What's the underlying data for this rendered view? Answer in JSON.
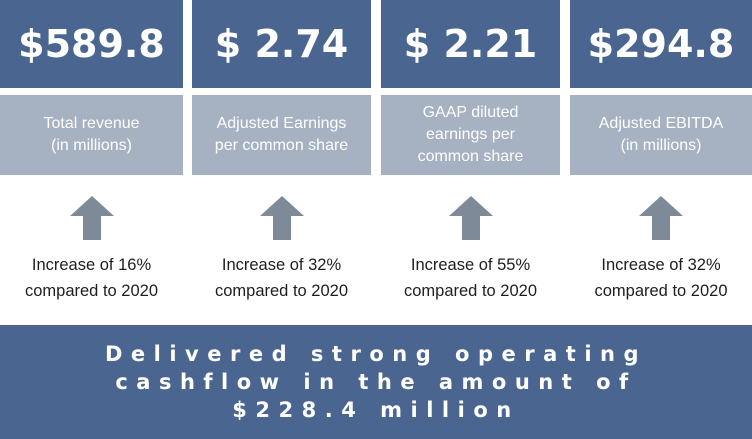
{
  "metrics": [
    {
      "value": "$589.8",
      "label_lines": [
        "Total revenue",
        "(in millions)"
      ],
      "caption_lines": [
        "Increase of 16%",
        "compared to 2020"
      ]
    },
    {
      "value": "$ 2.74",
      "label_lines": [
        "Adjusted Earnings",
        "per common share"
      ],
      "caption_lines": [
        "Increase of  32%",
        "compared to 2020"
      ]
    },
    {
      "value": "$ 2.21",
      "label_lines": [
        "GAAP diluted",
        "earnings per",
        "common share"
      ],
      "caption_lines": [
        "Increase of  55%",
        "compared to 2020"
      ]
    },
    {
      "value": "$294.8",
      "label_lines": [
        "Adjusted EBITDA",
        "(in millions)"
      ],
      "caption_lines": [
        "Increase of 32%",
        "compared to 2020"
      ]
    }
  ],
  "banner_lines": [
    "Delivered strong operating",
    "cashflow in the amount of",
    "$228.4 million"
  ],
  "icons": {
    "arrow": "arrow-up-icon"
  },
  "colors": {
    "dark_blue": "#4a6690",
    "light_blue": "#a6b1c2",
    "arrow_gray": "#7f8a99"
  }
}
